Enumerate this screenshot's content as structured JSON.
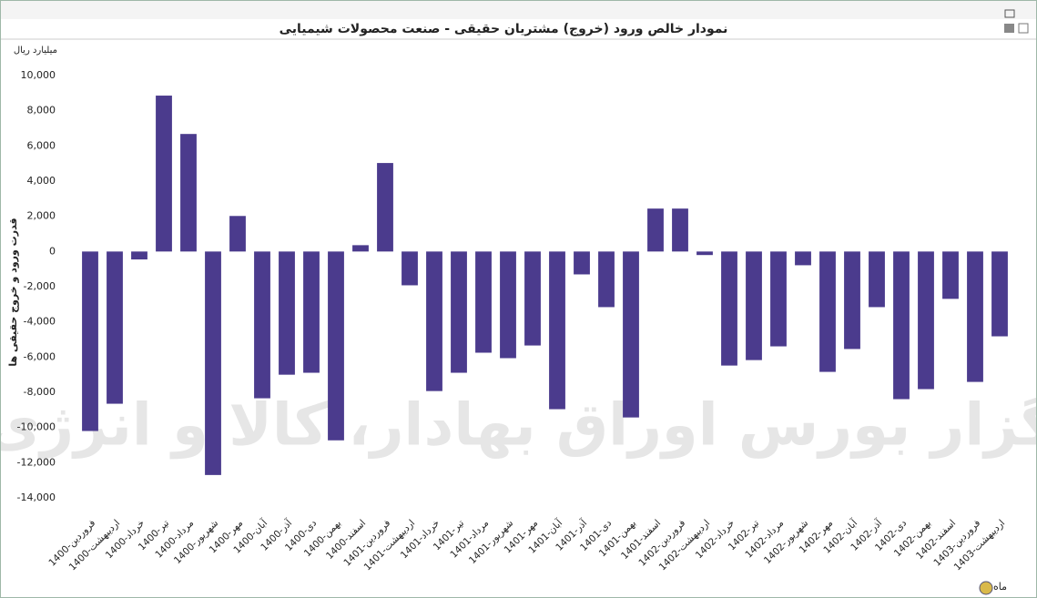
{
  "chart_data": {
    "type": "bar",
    "title": "نمودار خالص ورود (خروج) مشتریان حقیقی - صنعت محصولات شیمیایی",
    "unit_label": "میلیارد ریال",
    "y_label": "قدرت ورود و خروج حقیقی ها",
    "x_label": "ماه",
    "watermark": "کارگزار بورس اوراق بهادار، کالا و انرژی",
    "color": "#4b3b8d",
    "categories": [
      "1400-فروردین",
      "1400-اردیبهشت",
      "1400-خرداد",
      "1400-تیر",
      "1400-مرداد",
      "1400-شهریور",
      "1400-مهر",
      "1400-آبان",
      "1400-آذر",
      "1400-دی",
      "1400-بهمن",
      "1400-اسفند",
      "1401-فروردین",
      "1401-اردیبهشت",
      "1401-خرداد",
      "1401-تیر",
      "1401-مرداد",
      "1401-شهریور",
      "1401-مهر",
      "1401-آبان",
      "1401-آذر",
      "1401-دی",
      "1401-بهمن",
      "1401-اسفند",
      "1402-فروردین",
      "1402-اردیبهشت",
      "1402-خرداد",
      "1402-تیر",
      "1402-مرداد",
      "1402-شهریور",
      "1402-مهر",
      "1402-آبان",
      "1402-آذر",
      "1402-دی",
      "1402-بهمن",
      "1402-اسفند",
      "1403-فروردین",
      "1403-اردیبهشت"
    ],
    "values": [
      -10200,
      -8650,
      -450,
      8860,
      6680,
      -12700,
      2020,
      -8340,
      -7000,
      -6890,
      -10730,
      360,
      5030,
      -1920,
      -7930,
      -6890,
      -5750,
      -6060,
      -5340,
      -8960,
      -1300,
      -3160,
      -9430,
      2440,
      2440,
      -200,
      -6480,
      -6170,
      -5390,
      -780,
      -6840,
      -5540,
      -3160,
      -8390,
      -7820,
      -2690,
      -7410,
      -4820
    ],
    "ylim": [
      -14000,
      10000
    ],
    "yticks": [
      {
        "value": 10000,
        "label": "10,000"
      },
      {
        "value": 8000,
        "label": "8,000"
      },
      {
        "value": 6000,
        "label": "6,000"
      },
      {
        "value": 4000,
        "label": "4,000"
      },
      {
        "value": 2000,
        "label": "2,000"
      },
      0,
      {
        "value": -2000,
        "label": "-2,000"
      },
      {
        "value": -4000,
        "label": "-4,000"
      },
      {
        "value": -6000,
        "label": "-6,000"
      },
      {
        "value": -8000,
        "label": "-8,000"
      },
      {
        "value": -10000,
        "label": "-10,000"
      },
      {
        "value": -12000,
        "label": "-12,000"
      },
      {
        "value": -14000,
        "label": "-14,000"
      }
    ],
    "grid": false
  }
}
